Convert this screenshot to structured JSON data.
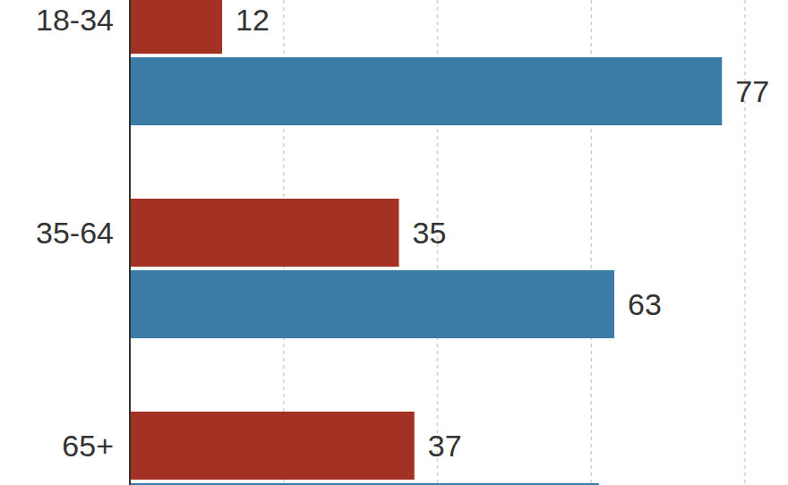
{
  "chart_data": {
    "type": "bar",
    "orientation": "horizontal",
    "categories": [
      "18-34",
      "35-64",
      "65+"
    ],
    "series": [
      {
        "color": "#a33224",
        "values": [
          12,
          35,
          37
        ]
      },
      {
        "color": "#3a7ca5",
        "values": [
          77,
          63,
          61
        ]
      }
    ],
    "xlim": [
      0,
      80
    ],
    "xticks": [
      20,
      40,
      60,
      80
    ],
    "grid": true,
    "data_labels": true,
    "tick_labels": "y"
  }
}
